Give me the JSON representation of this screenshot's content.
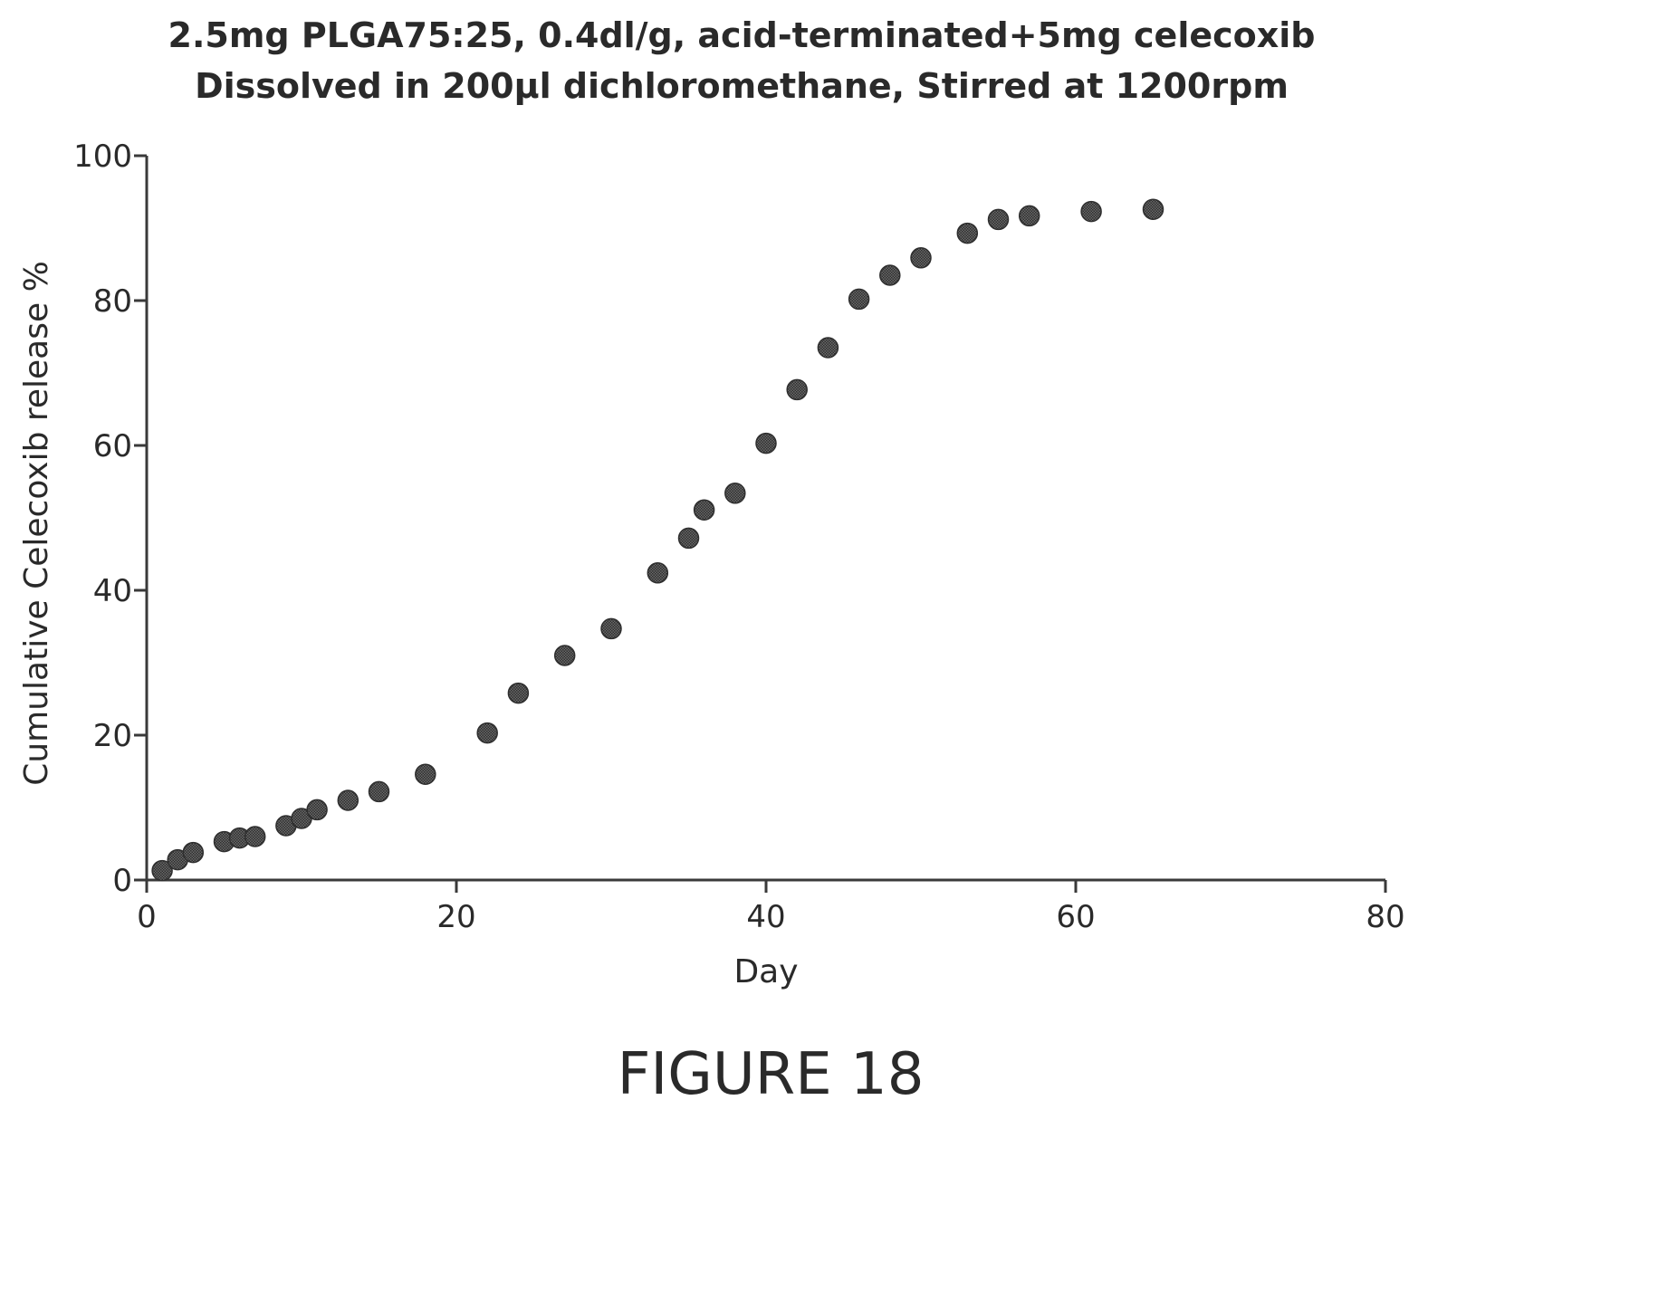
{
  "title_lines": [
    "2.5mg PLGA75:25, 0.4dl/g, acid-terminated+5mg celecoxib",
    "Dissolved in 200µl dichloromethane, Stirred at 1200rpm"
  ],
  "figure_caption": "FIGURE 18",
  "chart_data": {
    "type": "scatter",
    "title": "2.5mg PLGA75:25, 0.4dl/g, acid-terminated+5mg celecoxib Dissolved in 200µl dichloromethane, Stirred at 1200rpm",
    "xlabel": "Day",
    "ylabel": "Cumulative Celecoxib release %",
    "xlim": [
      0,
      80
    ],
    "ylim": [
      0,
      100
    ],
    "xticks": [
      0,
      20,
      40,
      60,
      80
    ],
    "yticks": [
      0,
      20,
      40,
      60,
      80,
      100
    ],
    "grid": false,
    "legend": "none",
    "marker_color": "#555555",
    "series": [
      {
        "x": [
          1,
          2,
          3,
          5,
          6,
          7,
          9,
          10,
          11,
          13,
          15,
          18,
          22,
          24,
          27,
          30,
          33,
          35,
          36,
          38,
          40,
          42,
          44,
          46,
          48,
          50,
          53,
          55,
          57,
          61,
          65
        ],
        "y": [
          1.3,
          2.8,
          3.8,
          5.3,
          5.8,
          6.0,
          7.5,
          8.5,
          9.7,
          11.0,
          12.2,
          14.6,
          20.3,
          25.8,
          31.0,
          34.7,
          42.4,
          47.2,
          51.1,
          53.4,
          60.3,
          67.7,
          73.5,
          80.2,
          83.5,
          85.9,
          89.3,
          91.2,
          91.7,
          92.3,
          92.6
        ]
      }
    ]
  }
}
